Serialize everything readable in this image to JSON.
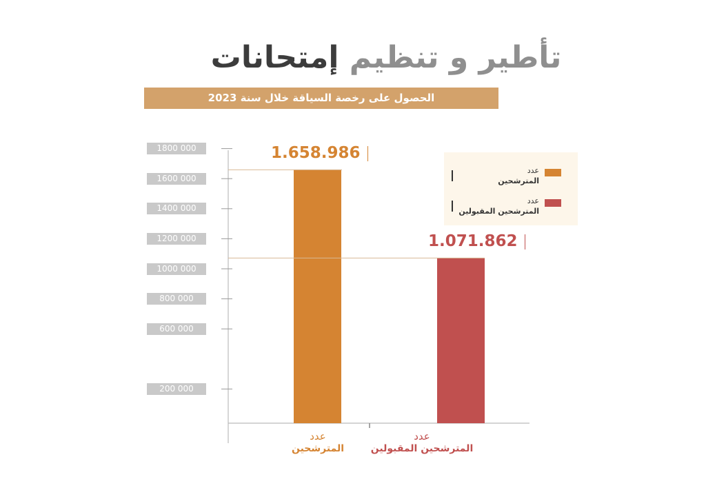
{
  "header": {
    "title_part1": "تأطير و تنظيم",
    "title_part2": "إمتحانات",
    "subtitle": "الحصول على رخصة السياقة خلال سنة 2023"
  },
  "chart_data": {
    "type": "bar",
    "categories": [
      {
        "line1": "عدد",
        "line2": "المترشحين"
      },
      {
        "line1": "عدد",
        "line2": "المترشحين المقبولين"
      }
    ],
    "values": [
      1658986,
      1071862
    ],
    "value_labels": [
      "1.658.986",
      "1.071.862"
    ],
    "colors": [
      "#d58432",
      "#c0504f"
    ],
    "yticks": [
      200000,
      600000,
      800000,
      1000000,
      1200000,
      1400000,
      1600000,
      1800000
    ],
    "ytick_labels": [
      "200 000",
      "600 000",
      "800 000",
      "1000 000",
      "1200 000",
      "1400 000",
      "1600 000",
      "1800 000"
    ],
    "ylim": [
      0,
      2000000
    ],
    "grid": false,
    "legend_position": "top-right",
    "legend": [
      {
        "line1": "عدد",
        "line2": "المترشحين",
        "color": "#d58432"
      },
      {
        "line1": "عدد",
        "line2": "المترشحين المقبولين",
        "color": "#c0504f"
      }
    ]
  }
}
